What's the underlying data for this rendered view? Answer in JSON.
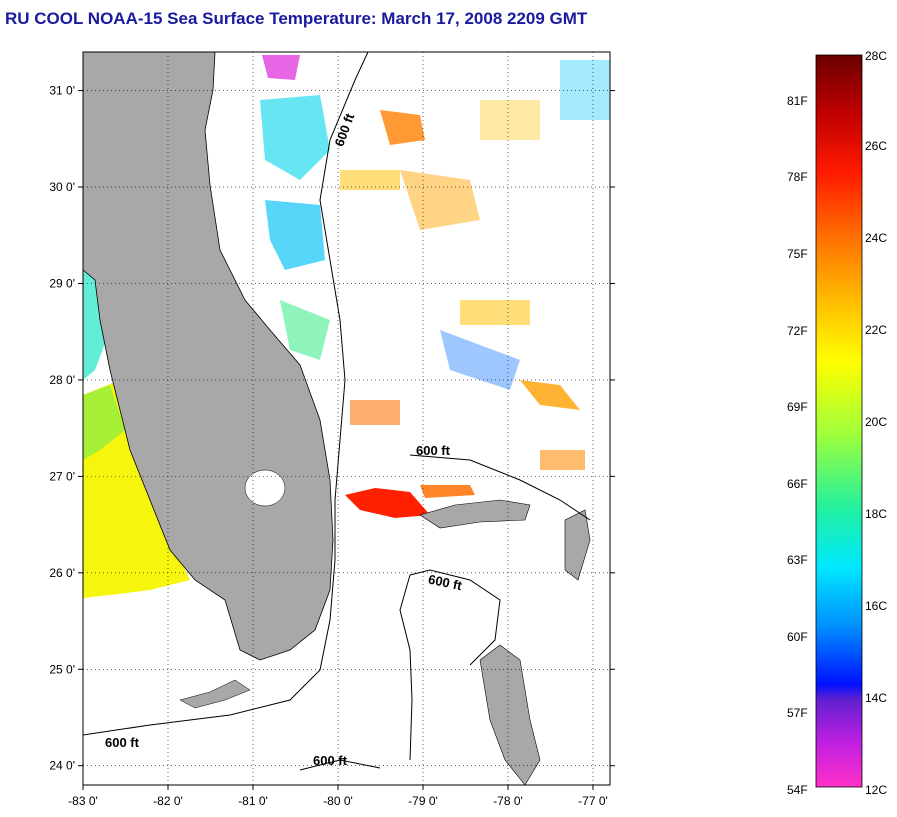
{
  "header": {
    "title": "RU COOL  NOAA-15  Sea Surface Temperature:  March 17, 2008 2209 GMT"
  },
  "map": {
    "lon_range": [
      -83,
      -76.8
    ],
    "lat_range": [
      23.8,
      31.4
    ],
    "lon_ticks": [
      {
        "value": -83,
        "label": "-83 0'"
      },
      {
        "value": -82,
        "label": "-82 0'"
      },
      {
        "value": -81,
        "label": "-81 0'"
      },
      {
        "value": -80,
        "label": "-80 0'"
      },
      {
        "value": -79,
        "label": "-79 0'"
      },
      {
        "value": -78,
        "label": "-78 0'"
      },
      {
        "value": -77,
        "label": "-77 0'"
      }
    ],
    "lat_ticks": [
      {
        "value": 31,
        "label": "31 0'"
      },
      {
        "value": 30,
        "label": "30 0'"
      },
      {
        "value": 29,
        "label": "29 0'"
      },
      {
        "value": 28,
        "label": "28 0'"
      },
      {
        "value": 27,
        "label": "27 0'"
      },
      {
        "value": 26,
        "label": "26 0'"
      },
      {
        "value": 25,
        "label": "25 0'"
      },
      {
        "value": 24,
        "label": "24 0'"
      }
    ],
    "grid": "dotted",
    "land_color": "#a8a8a8",
    "contour_labels": [
      "600 ft",
      "600 ft",
      "600 ft",
      "600 ft",
      "600 ft"
    ]
  },
  "colorbar": {
    "fahrenheit_labels": [
      "81F",
      "78F",
      "75F",
      "72F",
      "69F",
      "66F",
      "63F",
      "60F",
      "57F",
      "54F"
    ],
    "celsius_labels": [
      "28C",
      "26C",
      "24C",
      "22C",
      "20C",
      "18C",
      "16C",
      "14C",
      "12C"
    ]
  }
}
